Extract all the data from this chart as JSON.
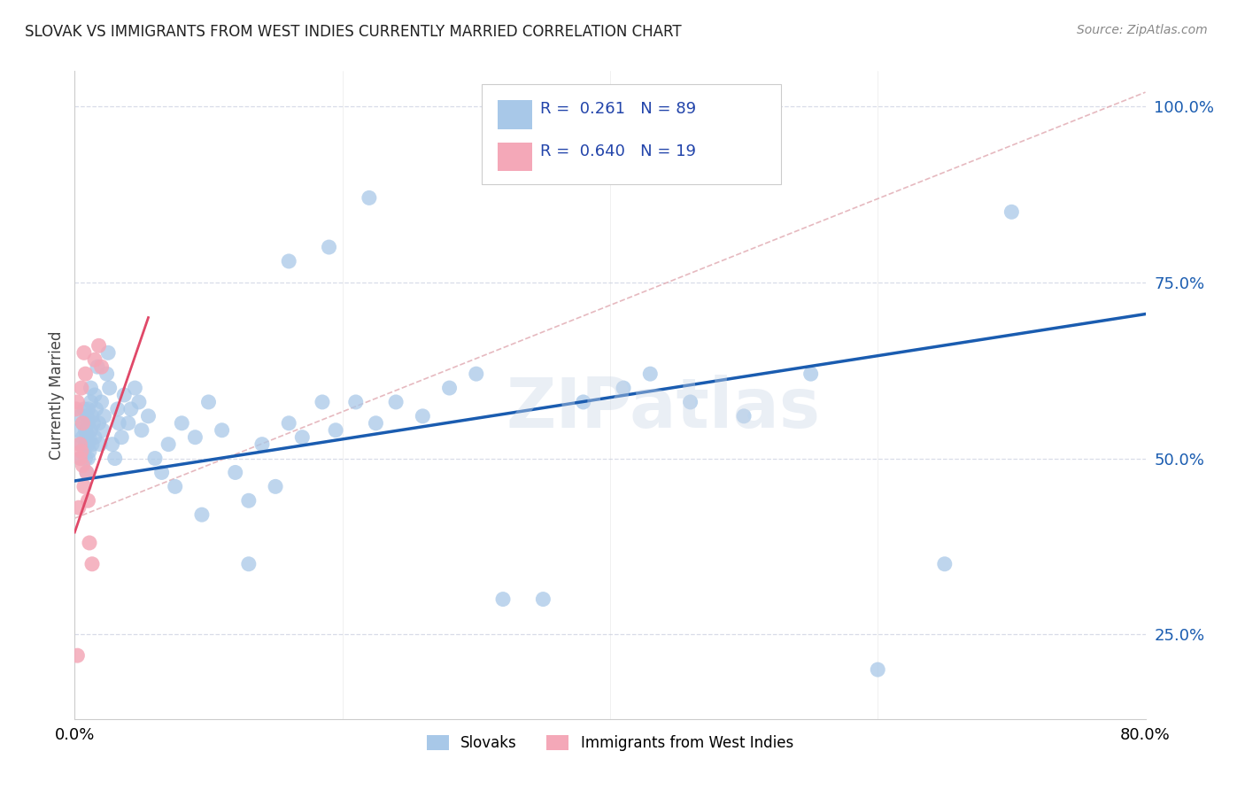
{
  "title": "SLOVAK VS IMMIGRANTS FROM WEST INDIES CURRENTLY MARRIED CORRELATION CHART",
  "source": "Source: ZipAtlas.com",
  "ylabel": "Currently Married",
  "x_label_bottom_left": "0.0%",
  "x_label_bottom_right": "80.0%",
  "y_ticks_vals": [
    0.25,
    0.5,
    0.75,
    1.0
  ],
  "y_ticks_labels": [
    "25.0%",
    "50.0%",
    "75.0%",
    "100.0%"
  ],
  "legend_label1": "Slovaks",
  "legend_label2": "Immigrants from West Indies",
  "R1": 0.261,
  "N1": 89,
  "R2": 0.64,
  "N2": 19,
  "color_blue": "#a8c8e8",
  "color_pink": "#f4a8b8",
  "line_color_blue": "#1a5cb0",
  "line_color_pink": "#e04868",
  "line_color_dashed": "#e0a8b0",
  "background_color": "#ffffff",
  "grid_color": "#d8dce8",
  "xlim": [
    0.0,
    0.8
  ],
  "ylim": [
    0.13,
    1.05
  ],
  "blue_line_x0": 0.0,
  "blue_line_y0": 0.468,
  "blue_line_x1": 0.8,
  "blue_line_y1": 0.705,
  "pink_line_x0": 0.0,
  "pink_line_y0": 0.395,
  "pink_line_x1": 0.055,
  "pink_line_y1": 0.7,
  "dashed_line_x0": 0.0,
  "dashed_line_y0": 0.415,
  "dashed_line_x1": 0.8,
  "dashed_line_y1": 1.02,
  "slovaks_x": [
    0.003,
    0.004,
    0.005,
    0.005,
    0.006,
    0.006,
    0.007,
    0.007,
    0.008,
    0.008,
    0.008,
    0.009,
    0.009,
    0.009,
    0.01,
    0.01,
    0.01,
    0.01,
    0.011,
    0.011,
    0.012,
    0.012,
    0.012,
    0.013,
    0.013,
    0.014,
    0.015,
    0.015,
    0.016,
    0.017,
    0.018,
    0.019,
    0.02,
    0.021,
    0.022,
    0.024,
    0.025,
    0.026,
    0.028,
    0.03,
    0.032,
    0.033,
    0.035,
    0.037,
    0.04,
    0.042,
    0.045,
    0.048,
    0.05,
    0.055,
    0.06,
    0.065,
    0.07,
    0.075,
    0.08,
    0.09,
    0.1,
    0.11,
    0.12,
    0.13,
    0.14,
    0.15,
    0.16,
    0.17,
    0.185,
    0.195,
    0.21,
    0.225,
    0.24,
    0.26,
    0.28,
    0.3,
    0.32,
    0.35,
    0.38,
    0.41,
    0.43,
    0.46,
    0.5,
    0.55,
    0.6,
    0.65,
    0.7,
    0.35,
    0.22,
    0.19,
    0.16,
    0.13,
    0.095
  ],
  "slovaks_y": [
    0.54,
    0.56,
    0.52,
    0.5,
    0.55,
    0.53,
    0.51,
    0.57,
    0.52,
    0.54,
    0.5,
    0.53,
    0.56,
    0.48,
    0.52,
    0.55,
    0.57,
    0.5,
    0.53,
    0.51,
    0.6,
    0.58,
    0.54,
    0.56,
    0.52,
    0.55,
    0.59,
    0.53,
    0.57,
    0.63,
    0.55,
    0.52,
    0.58,
    0.54,
    0.56,
    0.62,
    0.65,
    0.6,
    0.52,
    0.5,
    0.57,
    0.55,
    0.53,
    0.59,
    0.55,
    0.57,
    0.6,
    0.58,
    0.54,
    0.56,
    0.5,
    0.48,
    0.52,
    0.46,
    0.55,
    0.53,
    0.58,
    0.54,
    0.48,
    0.35,
    0.52,
    0.46,
    0.55,
    0.53,
    0.58,
    0.54,
    0.58,
    0.55,
    0.58,
    0.56,
    0.6,
    0.62,
    0.3,
    0.3,
    0.58,
    0.6,
    0.62,
    0.58,
    0.56,
    0.62,
    0.2,
    0.35,
    0.85,
    0.96,
    0.87,
    0.8,
    0.78,
    0.44,
    0.42
  ],
  "west_indies_x": [
    0.001,
    0.002,
    0.003,
    0.004,
    0.004,
    0.005,
    0.005,
    0.006,
    0.006,
    0.007,
    0.007,
    0.008,
    0.009,
    0.01,
    0.011,
    0.013,
    0.015,
    0.018,
    0.02
  ],
  "west_indies_y": [
    0.57,
    0.58,
    0.43,
    0.5,
    0.52,
    0.51,
    0.6,
    0.49,
    0.55,
    0.46,
    0.65,
    0.62,
    0.48,
    0.44,
    0.38,
    0.35,
    0.64,
    0.66,
    0.63
  ],
  "wi_outlier_x": [
    0.002
  ],
  "wi_outlier_y": [
    0.22
  ],
  "watermark": "ZIPatlas"
}
